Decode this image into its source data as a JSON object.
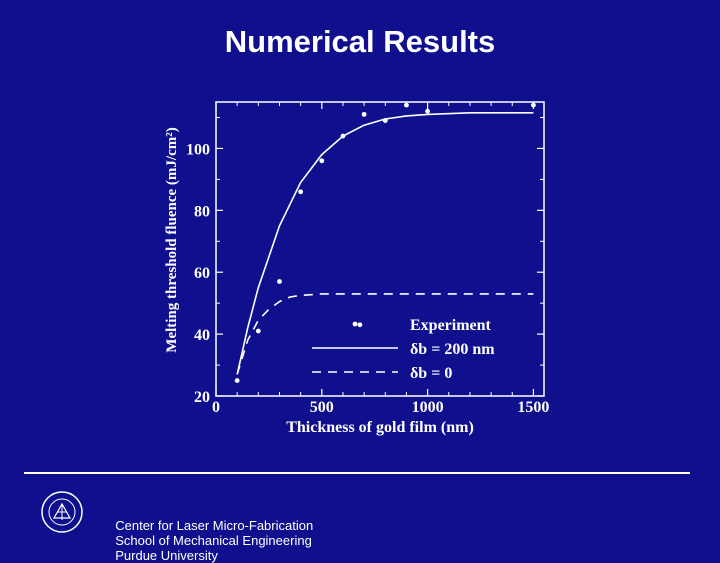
{
  "slide": {
    "title": "Numerical Results"
  },
  "footer": {
    "items": [
      "Center for Laser Micro-Fabrication",
      "School of Mechanical Engineering",
      "Purdue University"
    ],
    "logo_icon": "purdue-seal-icon"
  },
  "colors": {
    "background": "#10108e",
    "foreground": "#ffffff"
  },
  "chart_data": {
    "type": "scatter",
    "xlabel": "Thickness of gold film (nm)",
    "ylabel": "Melting threshold fluence (mJ/cm²)",
    "xlim": [
      0,
      1550
    ],
    "ylim": [
      20,
      115
    ],
    "x_ticks": [
      0,
      500,
      1000,
      1500
    ],
    "y_ticks": [
      20,
      40,
      60,
      80,
      100
    ],
    "grid": false,
    "legend_position": "bottom-right",
    "series": [
      {
        "name": "Experiment",
        "kind": "points",
        "x": [
          100,
          200,
          300,
          400,
          500,
          600,
          700,
          800,
          900,
          1000,
          1500,
          680
        ],
        "y": [
          25,
          41,
          57,
          86,
          96,
          104,
          111,
          109,
          114,
          112,
          114,
          43
        ]
      },
      {
        "name": "δb = 200 nm",
        "kind": "solid-line",
        "x": [
          100,
          150,
          200,
          300,
          400,
          500,
          600,
          700,
          800,
          900,
          1000,
          1200,
          1500
        ],
        "y": [
          27,
          42,
          55,
          75,
          89,
          98,
          104,
          107.5,
          109.5,
          110.5,
          111,
          111.5,
          111.5
        ]
      },
      {
        "name": "δb = 0",
        "kind": "dashed-line",
        "x": [
          100,
          150,
          200,
          250,
          300,
          350,
          400,
          500,
          700,
          1000,
          1500
        ],
        "y": [
          27,
          38,
          44.5,
          48,
          50.5,
          52,
          52.5,
          53,
          53,
          53,
          53
        ]
      }
    ]
  }
}
